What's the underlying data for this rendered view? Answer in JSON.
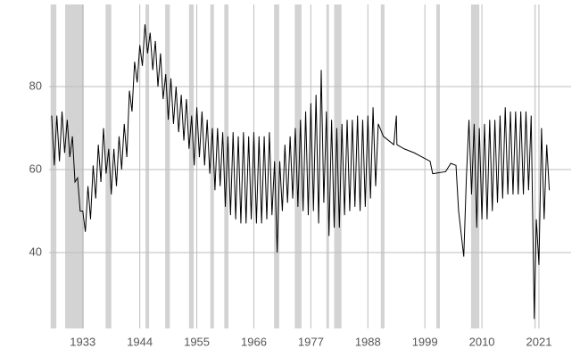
{
  "chart_data": {
    "type": "line",
    "color": "#000000",
    "grid": true,
    "shade_color": "#d3d3d3",
    "xlim": [
      1926.5,
      2027.2
    ],
    "ylim": [
      21.7,
      99.8
    ],
    "xticks": [
      1933,
      1944,
      1955,
      1966,
      1977,
      1988,
      1999,
      2010,
      2021
    ],
    "yticks": [
      40,
      60,
      80
    ],
    "recessions": [
      [
        1926.8,
        1927.9
      ],
      [
        1929.6,
        1933.2
      ],
      [
        1937.4,
        1938.5
      ],
      [
        1945.1,
        1945.8
      ],
      [
        1948.9,
        1949.8
      ],
      [
        1953.5,
        1954.4
      ],
      [
        1957.6,
        1958.3
      ],
      [
        1960.3,
        1961.1
      ],
      [
        1969.9,
        1970.9
      ],
      [
        1973.9,
        1975.2
      ],
      [
        1980.0,
        1980.5
      ],
      [
        1981.5,
        1982.9
      ],
      [
        1990.5,
        1991.2
      ],
      [
        2001.2,
        2001.9
      ],
      [
        2007.9,
        2009.5
      ],
      [
        2020.1,
        2020.4
      ]
    ],
    "x": [
      1927,
      1927.5,
      1928,
      1928.5,
      1929,
      1929.5,
      1930,
      1930.5,
      1931,
      1931.5,
      1932,
      1932.5,
      1933,
      1933.5,
      1934,
      1934.5,
      1935,
      1935.5,
      1936,
      1936.5,
      1937,
      1937.5,
      1938,
      1938.5,
      1939,
      1939.5,
      1940,
      1940.5,
      1941,
      1941.5,
      1942,
      1942.5,
      1943,
      1943.5,
      1944,
      1944.5,
      1945,
      1945.5,
      1946,
      1946.5,
      1947,
      1947.5,
      1948,
      1948.5,
      1949,
      1949.5,
      1950,
      1950.5,
      1951,
      1951.5,
      1952,
      1952.5,
      1953,
      1953.5,
      1954,
      1954.5,
      1955,
      1955.5,
      1956,
      1956.5,
      1957,
      1957.5,
      1958,
      1958.5,
      1959,
      1959.5,
      1960,
      1960.5,
      1961,
      1961.5,
      1962,
      1962.5,
      1963,
      1963.5,
      1964,
      1964.5,
      1965,
      1965.5,
      1966,
      1966.5,
      1967,
      1967.5,
      1968,
      1968.5,
      1969,
      1969.5,
      1970,
      1970.5,
      1971,
      1971.5,
      1972,
      1972.5,
      1973,
      1973.5,
      1974,
      1974.5,
      1975,
      1975.5,
      1976,
      1976.5,
      1977,
      1977.5,
      1978,
      1978.5,
      1979,
      1979.5,
      1980,
      1980.5,
      1981,
      1981.5,
      1982,
      1982.5,
      1983,
      1983.5,
      1984,
      1984.5,
      1985,
      1985.5,
      1986,
      1986.5,
      1987,
      1987.5,
      1988,
      1988.5,
      1989,
      1989.5,
      1990,
      1991,
      1992,
      1993,
      1993.5,
      1993.6,
      1995,
      1997,
      1998.5,
      2000,
      2000.5,
      2003,
      2004,
      2005,
      2005.5,
      2006.5,
      2007,
      2007.5,
      2008,
      2008.5,
      2009,
      2009.5,
      2010,
      2010.5,
      2011,
      2011.5,
      2012,
      2012.5,
      2013,
      2013.5,
      2014,
      2014.5,
      2015,
      2015.5,
      2016,
      2016.5,
      2017,
      2017.5,
      2018,
      2018.5,
      2019,
      2019.5,
      2020.1,
      2020.5,
      2021,
      2021.5,
      2022,
      2022.5,
      2023
    ],
    "values": [
      73,
      61,
      73,
      62,
      74,
      64,
      72,
      63,
      68,
      57,
      58,
      50,
      50,
      45,
      56,
      48,
      61,
      53,
      66,
      57,
      70,
      59,
      65,
      54,
      65,
      56,
      68,
      60,
      71,
      63,
      79,
      74,
      86,
      81,
      90,
      85,
      95,
      88,
      93,
      84,
      91,
      80,
      88,
      77,
      83,
      72,
      82,
      71,
      80,
      69,
      78,
      67,
      77,
      65,
      73,
      61,
      75,
      63,
      74,
      61,
      72,
      59,
      70,
      55,
      70,
      56,
      69,
      51,
      68,
      49,
      69,
      48,
      68,
      47,
      69,
      47,
      68,
      48,
      69,
      47,
      68,
      47,
      68,
      48,
      69,
      49,
      62,
      40,
      62,
      50,
      66,
      52,
      68,
      53,
      70,
      51,
      72,
      50,
      74,
      49,
      76,
      50,
      78,
      47,
      84,
      52,
      74,
      44,
      72,
      46,
      70,
      46,
      71,
      49,
      72,
      50,
      72,
      51,
      73,
      50,
      72,
      51,
      73,
      53,
      75,
      56,
      71,
      68,
      67,
      66,
      73,
      66,
      65,
      64,
      63,
      62,
      59,
      59.5,
      61.5,
      61,
      50,
      39,
      58,
      72,
      54,
      71,
      46,
      70,
      48,
      71,
      48,
      72,
      50,
      72,
      52,
      73,
      53,
      75,
      54,
      74,
      54,
      74,
      54,
      74,
      54,
      74,
      55,
      73,
      24,
      48,
      37,
      70,
      48,
      66,
      55
    ]
  }
}
